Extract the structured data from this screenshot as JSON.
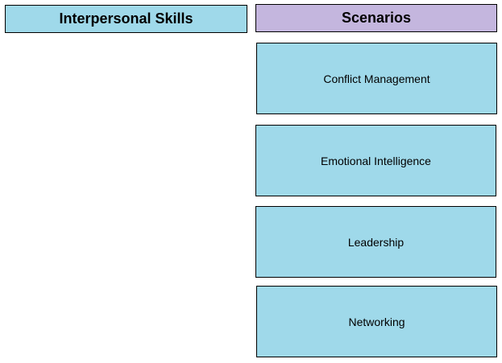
{
  "headers": {
    "left": "Interpersonal Skills",
    "right": "Scenarios"
  },
  "colors": {
    "header_left_bg": "#9fd9ea",
    "header_right_bg": "#c4b6de",
    "card_bg": "#9fd9ea",
    "border": "#000000"
  },
  "cards": [
    {
      "label": "Conflict Management"
    },
    {
      "label": "Emotional Intelligence"
    },
    {
      "label": "Leadership"
    },
    {
      "label": "Networking"
    }
  ]
}
